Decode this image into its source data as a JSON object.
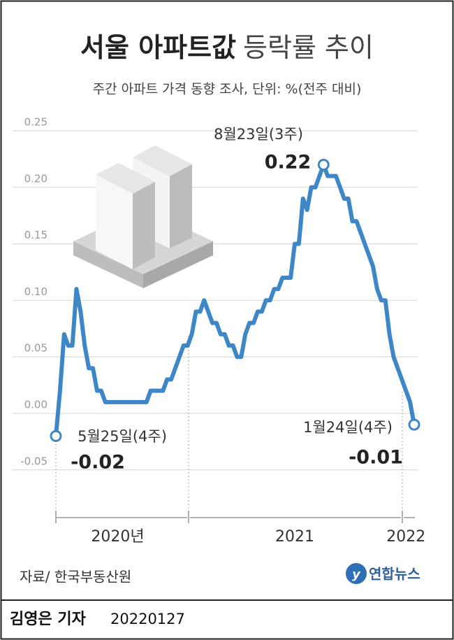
{
  "chart_data": {
    "type": "line",
    "title": [
      "서울 아파트값",
      "등락률 추이"
    ],
    "subtitle": "주간 아파트 가격 동향 조사, 단위: %(전주 대비)",
    "annotations": [
      "5월25일(4주)",
      "8월23일(3주)",
      "1월24일(4주)"
    ],
    "categories": [
      null,
      null,
      null,
      null,
      null,
      null,
      null,
      null,
      null,
      null,
      null,
      null,
      null,
      null,
      null,
      "2020년",
      null,
      null,
      null,
      null,
      null,
      null,
      null,
      null,
      null,
      null,
      null,
      null,
      null,
      null,
      null,
      null,
      null,
      null,
      null,
      null,
      null,
      null,
      null,
      null,
      null,
      null,
      null,
      null,
      null,
      null,
      null,
      null,
      null,
      null,
      null,
      null,
      null,
      null,
      null,
      null,
      null,
      null,
      "2021",
      null,
      null,
      null,
      null,
      null,
      null,
      null,
      null,
      null,
      null,
      null,
      null,
      null,
      null,
      null,
      null,
      null,
      null,
      null,
      null,
      null,
      null,
      null,
      null,
      null,
      null,
      "2022",
      null,
      null
    ],
    "values": [
      -0.02,
      0.02,
      0.07,
      0.06,
      0.06,
      0.11,
      0.09,
      0.06,
      0.04,
      0.04,
      0.02,
      0.02,
      0.01,
      0.01,
      0.01,
      0.01,
      0.01,
      0.01,
      0.01,
      0.01,
      0.01,
      0.01,
      0.01,
      0.02,
      0.02,
      0.02,
      0.02,
      0.03,
      0.03,
      0.04,
      0.05,
      0.06,
      0.06,
      0.07,
      0.09,
      0.09,
      0.1,
      0.09,
      0.08,
      0.08,
      0.07,
      0.07,
      0.06,
      0.06,
      0.05,
      0.05,
      0.07,
      0.08,
      0.08,
      0.09,
      0.09,
      0.1,
      0.1,
      0.11,
      0.11,
      0.12,
      0.12,
      0.12,
      0.15,
      0.15,
      0.19,
      0.18,
      0.2,
      0.2,
      0.21,
      0.22,
      0.21,
      0.21,
      0.21,
      0.2,
      0.19,
      0.19,
      0.17,
      0.17,
      0.16,
      0.15,
      0.14,
      0.13,
      0.11,
      0.1,
      0.1,
      0.07,
      0.05,
      0.04,
      0.03,
      0.02,
      0.01,
      -0.01
    ],
    "color": "#3d87c8",
    "ylim": [
      -0.075,
      0.25
    ],
    "yticks": [
      -0.05,
      {
        "value": 0,
        "label": "0.00"
      },
      0.05,
      {
        "value": 0.1,
        "label": "0.10"
      },
      0.15,
      {
        "value": 0.2,
        "label": "0.20"
      },
      0.25
    ],
    "grid": true
  },
  "source": "자료/ 한국부동산원",
  "credit": {
    "agency": "연합뉴스",
    "reporter": "김영은 기자",
    "date": "20220127"
  }
}
